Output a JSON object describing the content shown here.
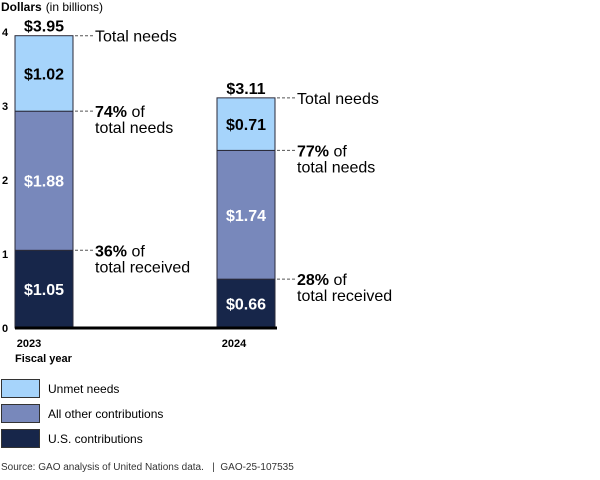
{
  "chart_data": {
    "type": "bar",
    "stacked": true,
    "title": "",
    "ylabel": "Dollars",
    "ylabel_suffix": "(in billions)",
    "xlabel": "Fiscal year",
    "ylim": [
      0,
      4
    ],
    "yticks": [
      "0",
      "1",
      "2",
      "3",
      "4"
    ],
    "categories": [
      "2023",
      "2024"
    ],
    "series": [
      {
        "name": "U.S. contributions",
        "key": "us",
        "color": "#17264a",
        "text_color": "#ffffff",
        "values": [
          1.05,
          0.66
        ],
        "labels": [
          "$1.05",
          "$0.66"
        ]
      },
      {
        "name": "All other contributions",
        "key": "other",
        "color": "#7888bb",
        "text_color": "#ffffff",
        "values": [
          1.88,
          1.74
        ],
        "labels": [
          "$1.88",
          "$1.74"
        ]
      },
      {
        "name": "Unmet needs",
        "key": "unmet",
        "color": "#a6d4fb",
        "text_color": "#000000",
        "values": [
          1.02,
          0.71
        ],
        "labels": [
          "$1.02",
          "$0.71"
        ]
      }
    ],
    "totals": [
      "$3.95",
      "$3.11"
    ],
    "annotations": [
      [
        {
          "at": "total",
          "bold": "",
          "line1": "Total needs",
          "line2": ""
        },
        {
          "at": "received",
          "bold": "74%",
          "line1": " of",
          "line2": "total needs"
        },
        {
          "at": "us",
          "bold": "36%",
          "line1": " of",
          "line2": "total received"
        }
      ],
      [
        {
          "at": "total",
          "bold": "",
          "line1": "Total needs",
          "line2": ""
        },
        {
          "at": "received",
          "bold": "77%",
          "line1": " of",
          "line2": "total needs"
        },
        {
          "at": "us",
          "bold": "28%",
          "line1": " of",
          "line2": "total received"
        }
      ]
    ]
  },
  "legend": [
    {
      "label": "Unmet needs",
      "color": "#a6d4fb"
    },
    {
      "label": "All other contributions",
      "color": "#7888bb"
    },
    {
      "label": "U.S. contributions",
      "color": "#17264a"
    }
  ],
  "source": "Source: GAO analysis of United Nations data.   |  GAO-25-107535"
}
